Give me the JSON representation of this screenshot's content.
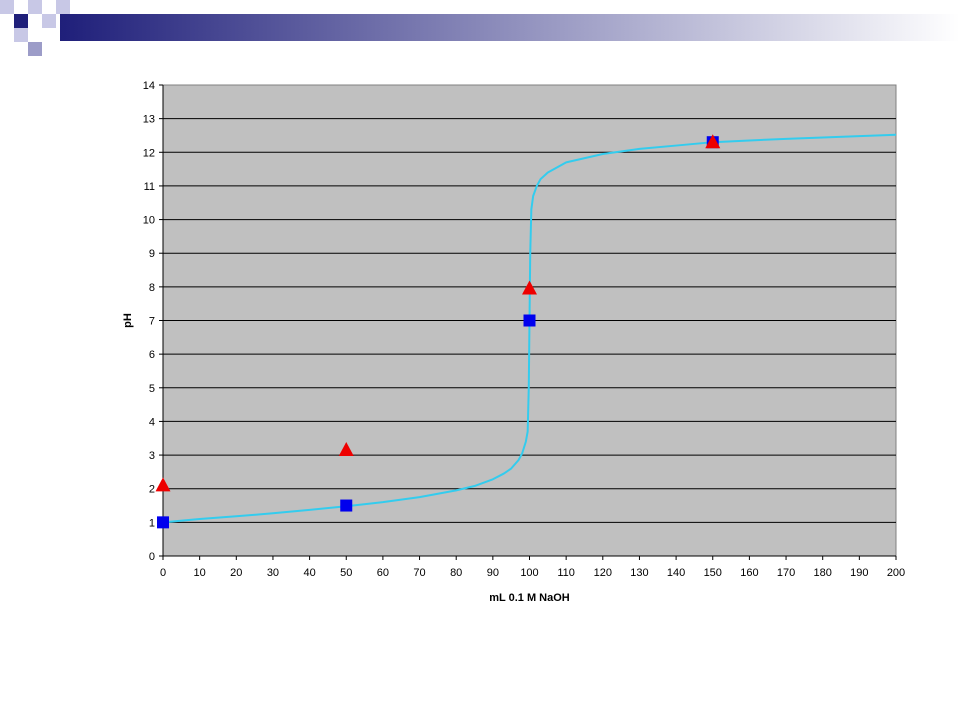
{
  "chart_data": {
    "type": "line",
    "xlabel": "mL 0.1 M NaOH",
    "ylabel": "pH",
    "xlim": [
      0,
      200
    ],
    "ylim": [
      0,
      14
    ],
    "x_ticks": [
      0,
      10,
      20,
      30,
      40,
      50,
      60,
      70,
      80,
      90,
      100,
      110,
      120,
      130,
      140,
      150,
      160,
      170,
      180,
      190,
      200
    ],
    "y_ticks": [
      0,
      1,
      2,
      3,
      4,
      5,
      6,
      7,
      8,
      9,
      10,
      11,
      12,
      13,
      14
    ],
    "grid": "horizontal",
    "legend": "none",
    "background_color": "#c0c0c0",
    "series": [
      {
        "type": "line",
        "color": "#33ccee",
        "x": [
          0,
          10,
          20,
          30,
          40,
          50,
          60,
          70,
          80,
          85,
          90,
          93,
          95,
          97,
          98,
          99,
          99.5,
          99.8,
          100,
          100.2,
          100.5,
          101,
          102,
          103,
          105,
          110,
          120,
          130,
          140,
          150,
          160,
          170,
          180,
          190,
          200
        ],
        "y": [
          1.0,
          1.1,
          1.18,
          1.27,
          1.37,
          1.48,
          1.6,
          1.75,
          1.95,
          2.08,
          2.28,
          2.45,
          2.6,
          2.85,
          3.05,
          3.4,
          3.7,
          5.0,
          7.0,
          9.0,
          10.3,
          10.7,
          11.0,
          11.2,
          11.4,
          11.7,
          11.95,
          12.1,
          12.2,
          12.3,
          12.35,
          12.4,
          12.44,
          12.48,
          12.52
        ]
      },
      {
        "type": "scatter",
        "marker": "square",
        "color": "#0000ee",
        "x": [
          0,
          50,
          100,
          150
        ],
        "y": [
          1.0,
          1.5,
          7.0,
          12.3
        ]
      },
      {
        "type": "scatter",
        "marker": "triangle",
        "color": "#ee0000",
        "x": [
          0,
          50,
          100,
          150
        ],
        "y": [
          2.1,
          3.15,
          7.95,
          12.3
        ]
      }
    ]
  }
}
